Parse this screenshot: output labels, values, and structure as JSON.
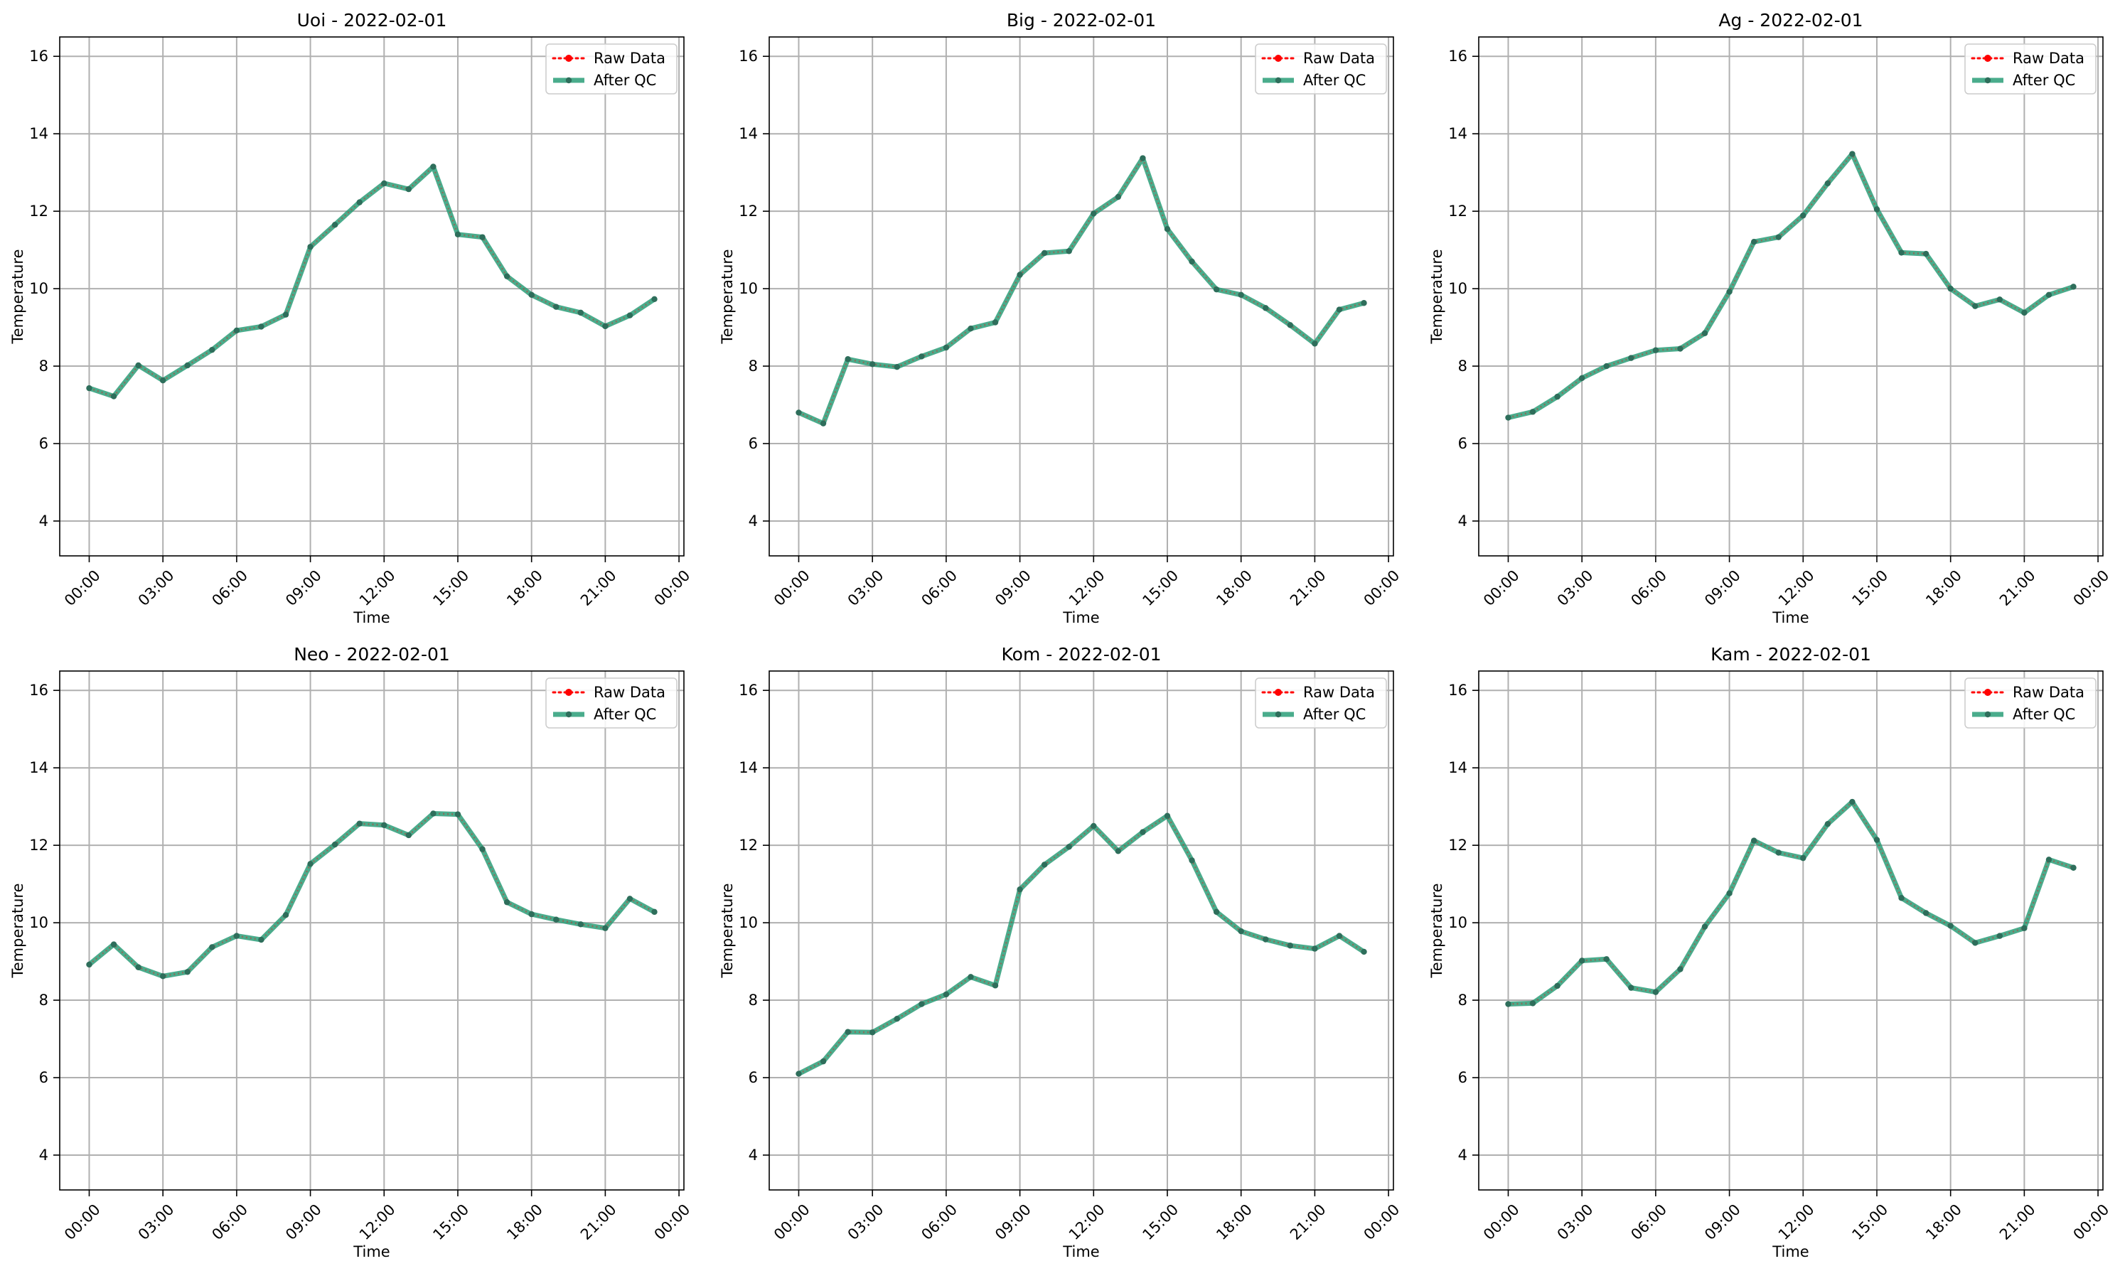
{
  "colors": {
    "raw": "#ff0000",
    "qc": "#2a9d78",
    "qc_marker": "#2e6e5b",
    "grid": "#b0b0b0",
    "axes": "#000000"
  },
  "chart_data": [
    {
      "type": "line",
      "title": "Uoi - 2022-02-01",
      "xlabel": "Time",
      "ylabel": "Temperature",
      "x_hours": [
        0,
        1,
        2,
        3,
        4,
        5,
        6,
        7,
        8,
        9,
        10,
        11,
        12,
        13,
        14,
        15,
        16,
        17,
        18,
        19,
        20,
        21,
        22,
        23
      ],
      "xlim": [
        -1.2,
        24.2
      ],
      "ylim": [
        3.1,
        16.5
      ],
      "xticks": [
        0,
        3,
        6,
        9,
        12,
        15,
        18,
        21,
        24
      ],
      "xtick_labels": [
        "00:00",
        "03:00",
        "06:00",
        "09:00",
        "12:00",
        "15:00",
        "18:00",
        "21:00",
        "00:00"
      ],
      "yticks": [
        4,
        6,
        8,
        10,
        12,
        14,
        16
      ],
      "ytick_labels": [
        "4",
        "6",
        "8",
        "10",
        "12",
        "14",
        "16"
      ],
      "grid": true,
      "legend_position": "top-right",
      "legend": [
        "Raw Data",
        "After QC"
      ],
      "series": [
        {
          "name": "Raw Data",
          "values": [
            7.43,
            7.22,
            8.02,
            7.63,
            8.02,
            8.42,
            8.92,
            9.02,
            9.33,
            11.08,
            11.65,
            12.23,
            12.72,
            12.57,
            13.15,
            11.4,
            11.33,
            10.32,
            9.84,
            9.53,
            9.38,
            9.03,
            9.31,
            9.73
          ]
        },
        {
          "name": "After QC",
          "values": [
            7.43,
            7.22,
            8.02,
            7.63,
            8.02,
            8.42,
            8.92,
            9.02,
            9.33,
            11.08,
            11.65,
            12.23,
            12.72,
            12.57,
            13.15,
            11.4,
            11.33,
            10.32,
            9.84,
            9.53,
            9.38,
            9.03,
            9.31,
            9.73
          ]
        }
      ]
    },
    {
      "type": "line",
      "title": "Big - 2022-02-01",
      "xlabel": "Time",
      "ylabel": "Temperature",
      "x_hours": [
        0,
        1,
        2,
        3,
        4,
        5,
        6,
        7,
        8,
        9,
        10,
        11,
        12,
        13,
        14,
        15,
        16,
        17,
        18,
        19,
        20,
        21,
        22,
        23
      ],
      "xlim": [
        -1.2,
        24.2
      ],
      "ylim": [
        3.1,
        16.5
      ],
      "xticks": [
        0,
        3,
        6,
        9,
        12,
        15,
        18,
        21,
        24
      ],
      "xtick_labels": [
        "00:00",
        "03:00",
        "06:00",
        "09:00",
        "12:00",
        "15:00",
        "18:00",
        "21:00",
        "00:00"
      ],
      "yticks": [
        4,
        6,
        8,
        10,
        12,
        14,
        16
      ],
      "ytick_labels": [
        "4",
        "6",
        "8",
        "10",
        "12",
        "14",
        "16"
      ],
      "grid": true,
      "legend_position": "top-right",
      "legend": [
        "Raw Data",
        "After QC"
      ],
      "series": [
        {
          "name": "Raw Data",
          "values": [
            6.8,
            6.52,
            8.18,
            8.05,
            7.98,
            8.25,
            8.48,
            8.97,
            9.13,
            10.36,
            10.92,
            10.97,
            11.94,
            12.37,
            13.37,
            11.54,
            10.7,
            9.98,
            9.84,
            9.5,
            9.06,
            8.58,
            9.46,
            9.63
          ]
        },
        {
          "name": "After QC",
          "values": [
            6.8,
            6.52,
            8.18,
            8.05,
            7.98,
            8.25,
            8.48,
            8.97,
            9.13,
            10.36,
            10.92,
            10.97,
            11.94,
            12.37,
            13.37,
            11.54,
            10.7,
            9.98,
            9.84,
            9.5,
            9.06,
            8.58,
            9.46,
            9.63
          ]
        }
      ]
    },
    {
      "type": "line",
      "title": "Ag - 2022-02-01",
      "xlabel": "Time",
      "ylabel": "Temperature",
      "x_hours": [
        0,
        1,
        2,
        3,
        4,
        5,
        6,
        7,
        8,
        9,
        10,
        11,
        12,
        13,
        14,
        15,
        16,
        17,
        18,
        19,
        20,
        21,
        22,
        23
      ],
      "xlim": [
        -1.2,
        24.2
      ],
      "ylim": [
        3.1,
        16.5
      ],
      "xticks": [
        0,
        3,
        6,
        9,
        12,
        15,
        18,
        21,
        24
      ],
      "xtick_labels": [
        "00:00",
        "03:00",
        "06:00",
        "09:00",
        "12:00",
        "15:00",
        "18:00",
        "21:00",
        "00:00"
      ],
      "yticks": [
        4,
        6,
        8,
        10,
        12,
        14,
        16
      ],
      "ytick_labels": [
        "4",
        "6",
        "8",
        "10",
        "12",
        "14",
        "16"
      ],
      "grid": true,
      "legend_position": "top-right",
      "legend": [
        "Raw Data",
        "After QC"
      ],
      "series": [
        {
          "name": "Raw Data",
          "values": [
            6.67,
            6.82,
            7.21,
            7.69,
            8.0,
            8.21,
            8.41,
            8.45,
            8.85,
            9.92,
            11.21,
            11.33,
            11.89,
            12.72,
            13.48,
            12.05,
            10.93,
            10.9,
            10.0,
            9.55,
            9.72,
            9.38,
            9.84,
            10.05
          ]
        },
        {
          "name": "After QC",
          "values": [
            6.67,
            6.82,
            7.21,
            7.69,
            8.0,
            8.21,
            8.41,
            8.45,
            8.85,
            9.92,
            11.21,
            11.33,
            11.89,
            12.72,
            13.48,
            12.05,
            10.93,
            10.9,
            10.0,
            9.55,
            9.72,
            9.38,
            9.84,
            10.05
          ]
        }
      ]
    },
    {
      "type": "line",
      "title": "Neo - 2022-02-01",
      "xlabel": "Time",
      "ylabel": "Temperature",
      "x_hours": [
        0,
        1,
        2,
        3,
        4,
        5,
        6,
        7,
        8,
        9,
        10,
        11,
        12,
        13,
        14,
        15,
        16,
        17,
        18,
        19,
        20,
        21,
        22,
        23
      ],
      "xlim": [
        -1.2,
        24.2
      ],
      "ylim": [
        3.1,
        16.5
      ],
      "xticks": [
        0,
        3,
        6,
        9,
        12,
        15,
        18,
        21,
        24
      ],
      "xtick_labels": [
        "00:00",
        "03:00",
        "06:00",
        "09:00",
        "12:00",
        "15:00",
        "18:00",
        "21:00",
        "00:00"
      ],
      "yticks": [
        4,
        6,
        8,
        10,
        12,
        14,
        16
      ],
      "ytick_labels": [
        "4",
        "6",
        "8",
        "10",
        "12",
        "14",
        "16"
      ],
      "grid": true,
      "legend_position": "top-right",
      "legend": [
        "Raw Data",
        "After QC"
      ],
      "series": [
        {
          "name": "Raw Data",
          "values": [
            8.92,
            9.44,
            8.85,
            8.62,
            8.73,
            9.37,
            9.66,
            9.56,
            10.2,
            11.52,
            12.02,
            12.56,
            12.52,
            12.26,
            12.82,
            12.8,
            11.9,
            10.53,
            10.22,
            10.08,
            9.96,
            9.86,
            10.62,
            10.28
          ]
        },
        {
          "name": "After QC",
          "values": [
            8.92,
            9.44,
            8.85,
            8.62,
            8.73,
            9.37,
            9.66,
            9.56,
            10.2,
            11.52,
            12.02,
            12.56,
            12.52,
            12.26,
            12.82,
            12.8,
            11.9,
            10.53,
            10.22,
            10.08,
            9.96,
            9.86,
            10.62,
            10.28
          ]
        }
      ]
    },
    {
      "type": "line",
      "title": "Kom - 2022-02-01",
      "xlabel": "Time",
      "ylabel": "Temperature",
      "x_hours": [
        0,
        1,
        2,
        3,
        4,
        5,
        6,
        7,
        8,
        9,
        10,
        11,
        12,
        13,
        14,
        15,
        16,
        17,
        18,
        19,
        20,
        21,
        22,
        23
      ],
      "xlim": [
        -1.2,
        24.2
      ],
      "ylim": [
        3.1,
        16.5
      ],
      "xticks": [
        0,
        3,
        6,
        9,
        12,
        15,
        18,
        21,
        24
      ],
      "xtick_labels": [
        "00:00",
        "03:00",
        "06:00",
        "09:00",
        "12:00",
        "15:00",
        "18:00",
        "21:00",
        "00:00"
      ],
      "yticks": [
        4,
        6,
        8,
        10,
        12,
        14,
        16
      ],
      "ytick_labels": [
        "4",
        "6",
        "8",
        "10",
        "12",
        "14",
        "16"
      ],
      "grid": true,
      "legend_position": "top-right",
      "legend": [
        "Raw Data",
        "After QC"
      ],
      "series": [
        {
          "name": "Raw Data",
          "values": [
            6.1,
            6.42,
            7.18,
            7.17,
            7.52,
            7.9,
            8.15,
            8.6,
            8.38,
            10.86,
            11.5,
            11.96,
            12.5,
            11.85,
            12.34,
            12.76,
            11.61,
            10.28,
            9.78,
            9.57,
            9.41,
            9.33,
            9.66,
            9.25
          ]
        },
        {
          "name": "After QC",
          "values": [
            6.1,
            6.42,
            7.18,
            7.17,
            7.52,
            7.9,
            8.15,
            8.6,
            8.38,
            10.86,
            11.5,
            11.96,
            12.5,
            11.85,
            12.34,
            12.76,
            11.61,
            10.28,
            9.78,
            9.57,
            9.41,
            9.33,
            9.66,
            9.25
          ]
        }
      ]
    },
    {
      "type": "line",
      "title": "Kam - 2022-02-01",
      "xlabel": "Time",
      "ylabel": "Temperature",
      "x_hours": [
        0,
        1,
        2,
        3,
        4,
        5,
        6,
        7,
        8,
        9,
        10,
        11,
        12,
        13,
        14,
        15,
        16,
        17,
        18,
        19,
        20,
        21,
        22,
        23
      ],
      "xlim": [
        -1.2,
        24.2
      ],
      "ylim": [
        3.1,
        16.5
      ],
      "xticks": [
        0,
        3,
        6,
        9,
        12,
        15,
        18,
        21,
        24
      ],
      "xtick_labels": [
        "00:00",
        "03:00",
        "06:00",
        "09:00",
        "12:00",
        "15:00",
        "18:00",
        "21:00",
        "00:00"
      ],
      "yticks": [
        4,
        6,
        8,
        10,
        12,
        14,
        16
      ],
      "ytick_labels": [
        "4",
        "6",
        "8",
        "10",
        "12",
        "14",
        "16"
      ],
      "grid": true,
      "legend_position": "top-right",
      "legend": [
        "Raw Data",
        "After QC"
      ],
      "series": [
        {
          "name": "Raw Data",
          "values": [
            7.9,
            7.92,
            8.37,
            9.02,
            9.06,
            8.32,
            8.21,
            8.8,
            9.9,
            10.76,
            12.12,
            11.81,
            11.67,
            12.55,
            13.12,
            12.14,
            10.64,
            10.25,
            9.92,
            9.48,
            9.66,
            9.86,
            11.63,
            11.42
          ]
        },
        {
          "name": "After QC",
          "values": [
            7.9,
            7.92,
            8.37,
            9.02,
            9.06,
            8.32,
            8.21,
            8.8,
            9.9,
            10.76,
            12.12,
            11.81,
            11.67,
            12.55,
            13.12,
            12.14,
            10.64,
            10.25,
            9.92,
            9.48,
            9.66,
            9.86,
            11.63,
            11.42
          ]
        }
      ]
    }
  ]
}
